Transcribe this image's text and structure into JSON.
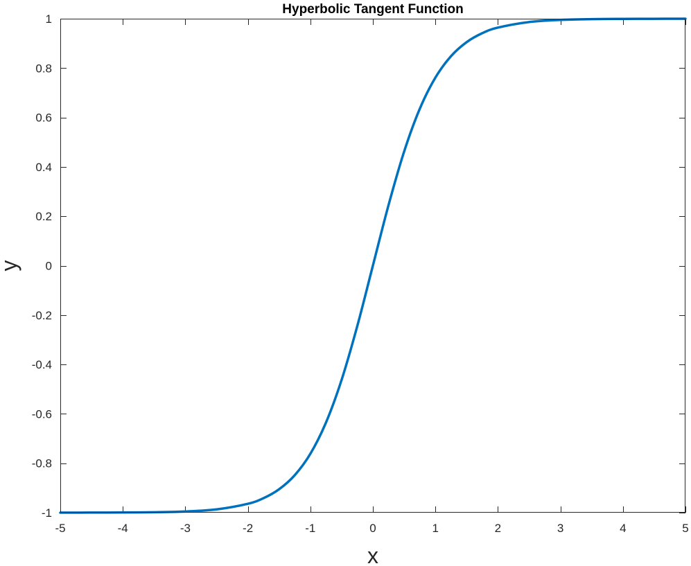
{
  "chart_data": {
    "type": "line",
    "title": "Hyperbolic Tangent Function",
    "xlabel": "x",
    "ylabel": "y",
    "xlim": [
      -5,
      5
    ],
    "ylim": [
      -1,
      1
    ],
    "xticks": [
      -5,
      -4,
      -3,
      -2,
      -1,
      0,
      1,
      2,
      3,
      4,
      5
    ],
    "xtick_labels": [
      "-5",
      "-4",
      "-3",
      "-2",
      "-1",
      "0",
      "1",
      "2",
      "3",
      "4",
      "5"
    ],
    "yticks": [
      -1,
      -0.8,
      -0.6,
      -0.4,
      -0.2,
      0,
      0.2,
      0.4,
      0.6,
      0.8,
      1
    ],
    "ytick_labels": [
      "-1",
      "-0.8",
      "-0.6",
      "-0.4",
      "-0.2",
      "0",
      "0.2",
      "0.4",
      "0.6",
      "0.8",
      "1"
    ],
    "grid": false,
    "series": [
      {
        "color": "#0072BD",
        "x": [
          -5,
          -4.5,
          -4,
          -3.5,
          -3,
          -2.5,
          -2,
          -1.75,
          -1.5,
          -1.25,
          -1,
          -0.75,
          -0.5,
          -0.25,
          0,
          0.25,
          0.5,
          0.75,
          1,
          1.25,
          1.5,
          1.75,
          2,
          2.5,
          3,
          3.5,
          4,
          4.5,
          5
        ],
        "y": [
          -0.9999,
          -0.9998,
          -0.9993,
          -0.9982,
          -0.9951,
          -0.9866,
          -0.964,
          -0.9414,
          -0.9051,
          -0.8483,
          -0.7616,
          -0.6351,
          -0.4621,
          -0.2449,
          0,
          0.2449,
          0.4621,
          0.6351,
          0.7616,
          0.8483,
          0.9051,
          0.9414,
          0.964,
          0.9866,
          0.9951,
          0.9982,
          0.9993,
          0.9998,
          0.9999
        ]
      }
    ]
  }
}
